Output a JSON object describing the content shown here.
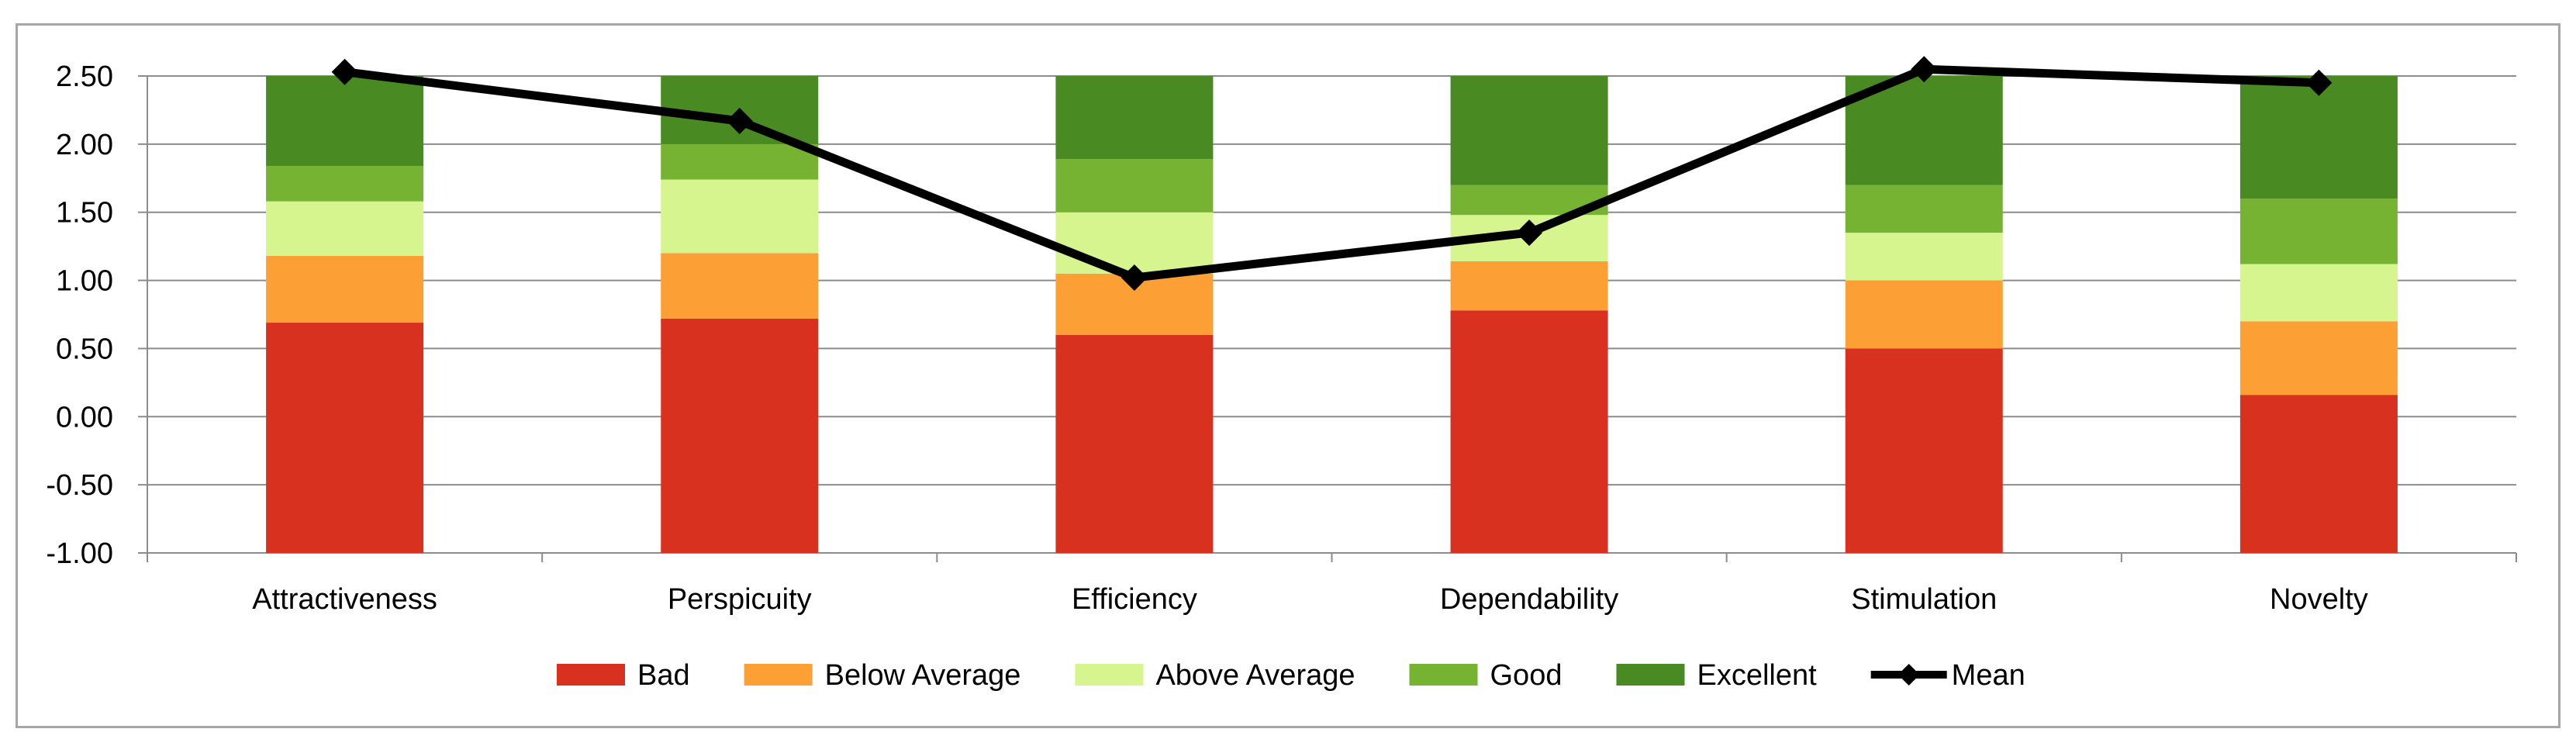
{
  "chart_data": {
    "type": "bar",
    "subtype": "stacked-bar-with-line",
    "title": "",
    "xlabel": "",
    "ylabel": "",
    "ylim": [
      -1.0,
      2.5
    ],
    "yticks": [
      "2.50",
      "2.00",
      "1.50",
      "1.00",
      "0.50",
      "0.00",
      "-0.50",
      "-1.00"
    ],
    "ytick_values": [
      2.5,
      2.0,
      1.5,
      1.0,
      0.5,
      0.0,
      -0.5,
      -1.0
    ],
    "grid": true,
    "legend_position": "bottom",
    "categories": [
      "Attractiveness",
      "Perspicuity",
      "Efficiency",
      "Dependability",
      "Stimulation",
      "Novelty"
    ],
    "series": [
      {
        "name": "Bad",
        "color": "#d9311f",
        "baseline": -1.0,
        "top": [
          0.69,
          0.72,
          0.6,
          0.78,
          0.5,
          0.16
        ]
      },
      {
        "name": "Below Average",
        "color": "#fca035",
        "top": [
          1.18,
          1.2,
          1.05,
          1.14,
          1.0,
          0.7
        ]
      },
      {
        "name": "Above Average",
        "color": "#d6f58f",
        "top": [
          1.58,
          1.74,
          1.5,
          1.48,
          1.35,
          1.12
        ]
      },
      {
        "name": "Good",
        "color": "#77b332",
        "top": [
          1.84,
          2.0,
          1.89,
          1.7,
          1.7,
          1.6
        ]
      },
      {
        "name": "Excellent",
        "color": "#4a8a22",
        "top": [
          2.5,
          2.5,
          2.5,
          2.5,
          2.5,
          2.5
        ]
      }
    ],
    "line_series": {
      "name": "Mean",
      "color": "#000000",
      "marker": "diamond",
      "values": [
        2.53,
        2.17,
        1.02,
        1.35,
        2.55,
        2.45
      ]
    }
  }
}
